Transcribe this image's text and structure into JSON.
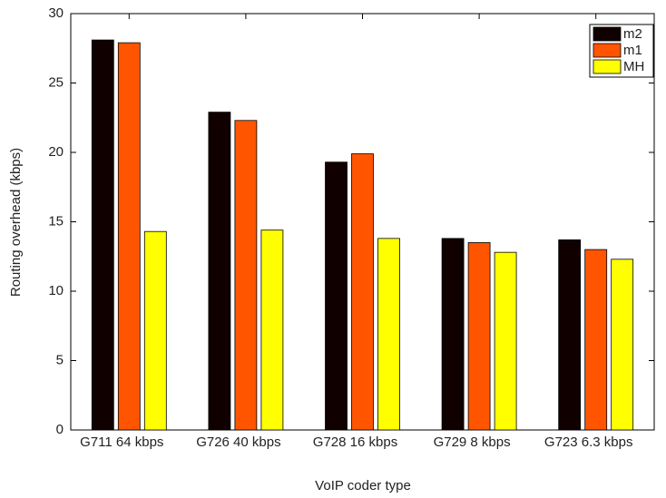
{
  "chart_data": {
    "type": "bar",
    "x_label": "VoIP coder type",
    "y_label": "Routing overhead (kbps)",
    "categories": [
      "G711 64 kbps",
      "G726 40 kbps",
      "G728 16 kbps",
      "G729 8 kbps",
      "G723 6.3 kbps"
    ],
    "series": [
      {
        "name": "m2",
        "color": "#100000",
        "values": [
          28.1,
          22.9,
          19.3,
          13.8,
          13.7
        ]
      },
      {
        "name": "m1",
        "color": "#ff5500",
        "values": [
          27.9,
          22.3,
          19.9,
          13.5,
          13.0
        ]
      },
      {
        "name": "MH",
        "color": "#ffff00",
        "values": [
          14.3,
          14.4,
          13.8,
          12.8,
          12.3
        ]
      }
    ],
    "ylim": [
      0,
      30
    ],
    "yticks": [
      0,
      5,
      10,
      15,
      20,
      25,
      30
    ],
    "legend": "top-right"
  }
}
